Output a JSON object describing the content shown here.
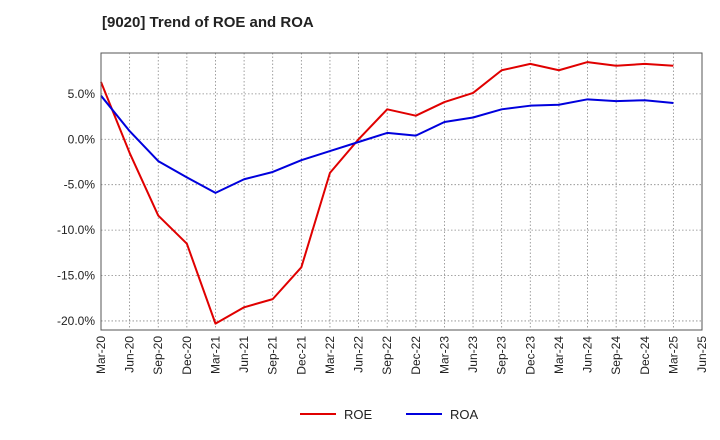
{
  "title": "[9020]  Trend of ROE and ROA",
  "colors": {
    "roe": "#e00000",
    "roa": "#0000dd",
    "grid": "#888888",
    "frame": "#555555"
  },
  "chart_data": {
    "type": "line",
    "title": "[9020]  Trend of ROE and ROA",
    "xlabel": "",
    "ylabel": "",
    "x_tick_labels": [
      "Mar-20",
      "Jun-20",
      "Sep-20",
      "Dec-20",
      "Mar-21",
      "Jun-21",
      "Sep-21",
      "Dec-21",
      "Mar-22",
      "Jun-22",
      "Sep-22",
      "Dec-22",
      "Mar-23",
      "Jun-23",
      "Sep-23",
      "Dec-23",
      "Mar-24",
      "Jun-24",
      "Sep-24",
      "Dec-24",
      "Mar-25",
      "Jun-25"
    ],
    "y_tick_labels": [
      "5.0%",
      "0.0%",
      "-5.0%",
      "-10.0%",
      "-15.0%",
      "-20.0%"
    ],
    "y_tick_values": [
      5,
      0,
      -5,
      -10,
      -15,
      -20
    ],
    "ylim": [
      -21,
      9.5
    ],
    "grid": true,
    "legend_position": "bottom-center",
    "x": [
      "Mar-20",
      "Jun-20",
      "Sep-20",
      "Dec-20",
      "Mar-21",
      "Jun-21",
      "Sep-21",
      "Dec-21",
      "Mar-22",
      "Jun-22",
      "Sep-22",
      "Dec-22",
      "Mar-23",
      "Jun-23",
      "Sep-23",
      "Dec-23",
      "Mar-24",
      "Jun-24",
      "Sep-24",
      "Dec-24",
      "Mar-25"
    ],
    "series": [
      {
        "name": "ROE",
        "color": "#e00000",
        "values": [
          6.3,
          -1.5,
          -8.4,
          -11.5,
          -20.3,
          -18.5,
          -17.6,
          -14.1,
          -3.7,
          0.0,
          3.3,
          2.6,
          4.1,
          5.1,
          7.6,
          8.3,
          7.6,
          8.5,
          8.1,
          8.3,
          8.1
        ]
      },
      {
        "name": "ROA",
        "color": "#0000dd",
        "values": [
          4.8,
          0.9,
          -2.4,
          -4.2,
          -5.9,
          -4.4,
          -3.6,
          -2.3,
          -1.3,
          -0.3,
          0.7,
          0.4,
          1.9,
          2.4,
          3.3,
          3.7,
          3.8,
          4.4,
          4.2,
          4.3,
          4.0
        ]
      }
    ]
  }
}
